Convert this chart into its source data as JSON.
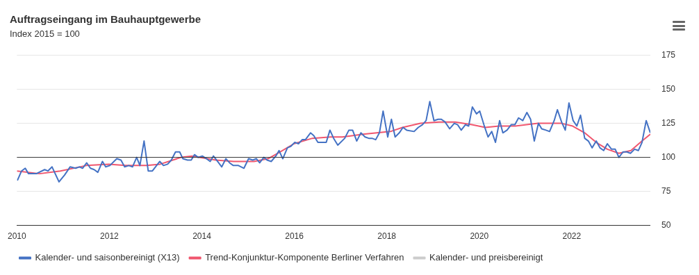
{
  "chart_data": {
    "type": "line",
    "title": "Auftragseingang im Bauhauptgewerbe",
    "subtitle": "Index 2015 = 100",
    "xlim": [
      2010,
      2023.7
    ],
    "xticks": [
      2010,
      2012,
      2014,
      2016,
      2018,
      2020,
      2022
    ],
    "ylim": [
      50,
      175
    ],
    "yticks": [
      50,
      75,
      100,
      125,
      150,
      175
    ],
    "grid": "y",
    "legend": "bottom left",
    "marker": "none",
    "line_style": "solid",
    "ref_lines": [
      {
        "axis": "y",
        "value": 100,
        "color": "#333333"
      }
    ],
    "series": [
      {
        "name": "Kalender- und saisonbereinigt (X13)",
        "color": "#4472c4",
        "x": [
          2010.01,
          2010.1,
          2010.18,
          2010.25,
          2010.42,
          2010.6,
          2010.67,
          2010.76,
          2010.91,
          2011.03,
          2011.15,
          2011.27,
          2011.35,
          2011.42,
          2011.51,
          2011.59,
          2011.67,
          2011.75,
          2011.85,
          2011.92,
          2012.01,
          2012.16,
          2012.25,
          2012.33,
          2012.42,
          2012.5,
          2012.59,
          2012.66,
          2012.75,
          2012.84,
          2012.93,
          2013.09,
          2013.17,
          2013.26,
          2013.34,
          2013.43,
          2013.52,
          2013.59,
          2013.69,
          2013.77,
          2013.84,
          2013.92,
          2014.01,
          2014.1,
          2014.18,
          2014.25,
          2014.34,
          2014.43,
          2014.52,
          2014.6,
          2014.68,
          2014.79,
          2014.91,
          2015.01,
          2015.1,
          2015.18,
          2015.25,
          2015.34,
          2015.41,
          2015.5,
          2015.6,
          2015.67,
          2015.75,
          2015.85,
          2015.92,
          2016.01,
          2016.09,
          2016.17,
          2016.24,
          2016.35,
          2016.42,
          2016.51,
          2016.69,
          2016.77,
          2016.85,
          2016.94,
          2017.09,
          2017.18,
          2017.26,
          2017.35,
          2017.44,
          2017.53,
          2017.61,
          2017.68,
          2017.76,
          2017.84,
          2017.92,
          2018.02,
          2018.1,
          2018.18,
          2018.27,
          2018.35,
          2018.43,
          2018.59,
          2018.68,
          2018.77,
          2018.85,
          2018.93,
          2019.02,
          2019.11,
          2019.18,
          2019.26,
          2019.36,
          2019.46,
          2019.53,
          2019.61,
          2019.7,
          2019.77,
          2019.85,
          2019.94,
          2020.01,
          2020.1,
          2020.19,
          2020.27,
          2020.35,
          2020.44,
          2020.51,
          2020.6,
          2020.69,
          2020.77,
          2020.85,
          2020.94,
          2021.03,
          2021.11,
          2021.19,
          2021.28,
          2021.35,
          2021.44,
          2021.52,
          2021.62,
          2021.69,
          2021.78,
          2021.86,
          2021.94,
          2022.03,
          2022.11,
          2022.19,
          2022.28,
          2022.36,
          2022.44,
          2022.53,
          2022.61,
          2022.69,
          2022.77,
          2022.86,
          2022.94,
          2023.02,
          2023.11,
          2023.19,
          2023.27,
          2023.36,
          2023.44,
          2023.52,
          2023.61,
          2023.7
        ],
        "values": [
          83,
          90,
          92,
          88,
          88,
          91,
          90,
          93,
          82,
          87,
          93,
          92,
          93,
          92,
          96,
          92,
          91,
          89,
          97,
          93,
          94,
          99,
          98,
          93,
          94,
          93,
          100,
          94,
          112,
          90,
          90,
          97,
          94,
          95,
          98,
          104,
          104,
          99,
          98,
          98,
          102,
          100,
          101,
          99,
          97,
          101,
          97,
          93,
          99,
          96,
          94,
          94,
          92,
          99,
          98,
          99,
          96,
          100,
          98,
          97,
          101,
          105,
          99,
          107,
          108,
          111,
          110,
          113,
          113,
          118,
          116,
          111,
          111,
          120,
          114,
          109,
          114,
          120,
          120,
          112,
          118,
          115,
          114,
          114,
          113,
          118,
          134,
          115,
          128,
          115,
          118,
          122,
          120,
          119,
          122,
          124,
          127,
          141,
          127,
          128,
          128,
          126,
          121,
          125,
          124,
          120,
          124,
          123,
          137,
          132,
          134,
          124,
          115,
          119,
          111,
          127,
          118,
          120,
          124,
          124,
          129,
          127,
          133,
          128,
          112,
          125,
          121,
          120,
          119,
          127,
          135,
          126,
          120,
          140,
          127,
          123,
          131,
          114,
          112,
          107,
          112,
          107,
          105,
          110,
          106,
          106,
          100,
          104,
          104,
          103,
          106,
          105,
          111,
          127,
          118
        ]
      },
      {
        "name": "Trend-Konjunktur-Komponente Berliner Verfahren",
        "color": "#f0566e",
        "x": [
          2010.0,
          2010.49,
          2010.94,
          2011.5,
          2011.99,
          2012.35,
          2012.8,
          2013.1,
          2013.55,
          2013.79,
          2014.3,
          2014.69,
          2015.13,
          2015.43,
          2015.69,
          2015.99,
          2016.39,
          2016.78,
          2017.04,
          2017.49,
          2018.08,
          2018.34,
          2018.73,
          2019.13,
          2019.48,
          2019.84,
          2020.13,
          2020.43,
          2020.78,
          2021.27,
          2021.63,
          2021.78,
          2022.02,
          2022.28,
          2022.53,
          2022.77,
          2023.02,
          2023.28,
          2023.52,
          2023.7
        ],
        "values": [
          90,
          88,
          90,
          94,
          95,
          94,
          94,
          95,
          100,
          101,
          98,
          97,
          97,
          99,
          104,
          110,
          114,
          115,
          115,
          117,
          119,
          122,
          125,
          126,
          126,
          124,
          122,
          123,
          123,
          125,
          125,
          125,
          123,
          118,
          111,
          106,
          103,
          105,
          112,
          117
        ]
      },
      {
        "name": "Kalender- und preisbereinigt",
        "color": "#cccccc"
      }
    ]
  }
}
